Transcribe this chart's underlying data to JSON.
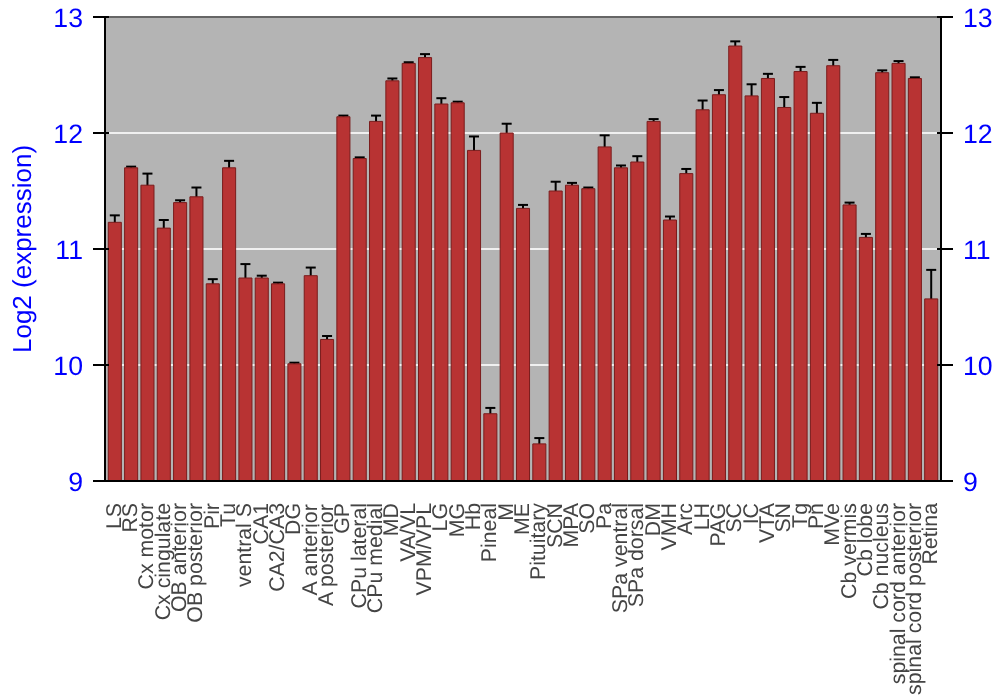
{
  "chart_data": {
    "type": "bar",
    "ylabel": "Log2 (expression)",
    "categories": [
      "LS",
      "RS",
      "Cx motor",
      "Cx cingulate",
      "OB anterior",
      "OB posterior",
      "Pir",
      "Tu",
      "ventral S",
      "CA1",
      "CA2/CA3",
      "DG",
      "A anterior",
      "A posterior",
      "GP",
      "CPu lateral",
      "CPu medial",
      "MD",
      "VA/VL",
      "VPM/VPL",
      "LG",
      "MG",
      "Hb",
      "Pineal",
      "M",
      "ME",
      "Pituitary",
      "SCN",
      "MPA",
      "SO",
      "Pa",
      "SPa ventral",
      "SPa dorsal",
      "DM",
      "VMH",
      "Arc",
      "LH",
      "PAG",
      "SC",
      "IC",
      "VTA",
      "SN",
      "Tg",
      "Pn",
      "MVe",
      "Cb vermis",
      "Cb lobe",
      "Cb nucleus",
      "spinal cord anterior",
      "spinal cord posterior",
      "Retina"
    ],
    "values": [
      11.23,
      11.7,
      11.55,
      11.18,
      11.4,
      11.45,
      10.7,
      11.7,
      10.75,
      10.75,
      10.7,
      10.01,
      10.77,
      10.22,
      12.14,
      11.78,
      12.1,
      12.45,
      12.6,
      12.65,
      12.25,
      12.26,
      11.85,
      9.58,
      12.0,
      11.35,
      9.32,
      11.5,
      11.55,
      11.52,
      11.88,
      11.7,
      11.75,
      12.1,
      11.25,
      11.65,
      12.2,
      12.33,
      12.75,
      12.32,
      12.47,
      12.22,
      12.53,
      12.17,
      12.58,
      11.38,
      11.1,
      12.52,
      12.6,
      12.47,
      10.57
    ],
    "errors": [
      0.06,
      0.01,
      0.1,
      0.07,
      0.02,
      0.08,
      0.04,
      0.06,
      0.12,
      0.02,
      0.01,
      0.01,
      0.07,
      0.03,
      0.01,
      0.01,
      0.05,
      0.02,
      0.01,
      0.03,
      0.05,
      0.01,
      0.12,
      0.05,
      0.08,
      0.03,
      0.05,
      0.08,
      0.02,
      0.01,
      0.1,
      0.02,
      0.05,
      0.02,
      0.03,
      0.04,
      0.08,
      0.04,
      0.04,
      0.1,
      0.04,
      0.09,
      0.04,
      0.09,
      0.05,
      0.02,
      0.03,
      0.02,
      0.02,
      0.01,
      0.25
    ],
    "color": "#b83333",
    "ylim": [
      9,
      13
    ],
    "yticks": [
      9,
      10,
      11,
      12,
      13
    ],
    "y2lim": [
      9,
      13
    ],
    "y2ticks": [
      9,
      10,
      11,
      12,
      13
    ],
    "grid": "y"
  }
}
